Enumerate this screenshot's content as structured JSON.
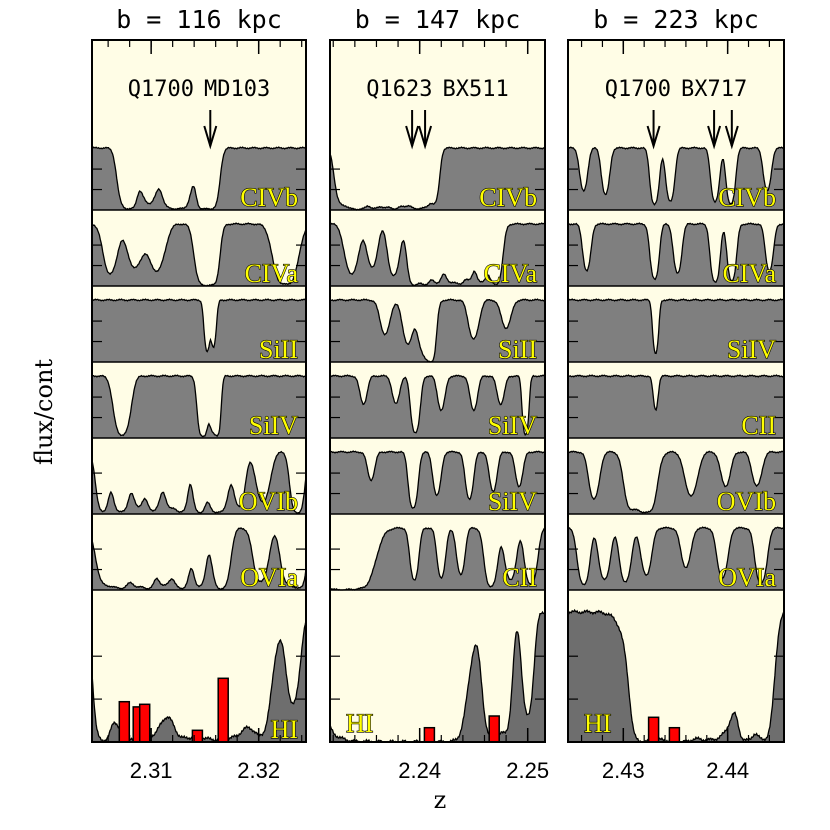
{
  "chart_data": {
    "type": "line",
    "ylabel": "flux/cont",
    "xlabel": "z",
    "colors": {
      "background": "#fffde6",
      "absorption_fill": "#7f7f7f",
      "hi_fill": "#6e6e6e",
      "bar": "#ff0000"
    },
    "panels": [
      {
        "title": "b = 116 kpc",
        "qso": "Q1700",
        "galaxy": "MD103",
        "xlim": [
          2.3045,
          2.3244
        ],
        "xticks": [
          "2.31",
          "2.32"
        ],
        "xtick_values": [
          2.31,
          2.32
        ],
        "galaxy_z": [
          2.3155
        ],
        "bars": [
          {
            "z": 2.3075,
            "h": 0.31
          },
          {
            "z": 2.3088,
            "h": 0.27
          },
          {
            "z": 2.3094,
            "h": 0.29
          },
          {
            "z": 2.3143,
            "h": 0.09
          },
          {
            "z": 2.3167,
            "h": 0.49
          }
        ],
        "rows": [
          {
            "ion": "CIVb",
            "lines": [
              [
                2.3074,
                0.5,
                0.0004
              ],
              [
                2.3081,
                0.9,
                0.0004
              ],
              [
                2.3098,
                0.55,
                0.0006
              ],
              [
                2.3117,
                0.7,
                0.0005
              ],
              [
                2.3128,
                0.9,
                0.0006
              ],
              [
                2.3148,
                0.98,
                0.0004
              ],
              [
                2.3157,
                0.85,
                0.0004
              ]
            ]
          },
          {
            "ion": "CIVa",
            "lines": [
              [
                2.3062,
                0.4,
                0.0005
              ],
              [
                2.3085,
                0.3,
                0.0006
              ],
              [
                2.3105,
                0.35,
                0.0006
              ],
              [
                2.3149,
                0.95,
                0.0005
              ],
              [
                2.3157,
                0.8,
                0.0004
              ],
              [
                2.3225,
                0.9,
                0.0007
              ]
            ]
          },
          {
            "ion": "SiII",
            "lines": [
              [
                2.3152,
                0.45,
                0.0002
              ],
              [
                2.3158,
                0.35,
                0.0002
              ]
            ]
          },
          {
            "ion": "SiIV",
            "lines": [
              [
                2.3073,
                0.75,
                0.0005
              ],
              [
                2.3148,
                0.95,
                0.0003
              ],
              [
                2.3158,
                0.6,
                0.0003
              ],
              [
                2.3162,
                0.5,
                0.0002
              ]
            ]
          },
          {
            "ion": "OVIb",
            "lines": [
              [
                2.3055,
                0.75,
                0.0004
              ],
              [
                2.3072,
                0.85,
                0.0005
              ],
              [
                2.3088,
                0.5,
                0.0004
              ],
              [
                2.3102,
                0.7,
                0.0005
              ],
              [
                2.3118,
                0.55,
                0.0004
              ],
              [
                2.3128,
                0.85,
                0.0004
              ],
              [
                2.3145,
                0.9,
                0.0004
              ],
              [
                2.3162,
                0.95,
                0.0006
              ],
              [
                2.3182,
                0.5,
                0.0004
              ],
              [
                2.3204,
                0.4,
                0.0005
              ],
              [
                2.3236,
                0.95,
                0.0004
              ]
            ]
          },
          {
            "ion": "OVIa",
            "lines": [
              [
                2.3058,
                0.6,
                0.0006
              ],
              [
                2.3072,
                0.85,
                0.0006
              ],
              [
                2.3088,
                0.7,
                0.0005
              ],
              [
                2.3098,
                0.8,
                0.0004
              ],
              [
                2.3112,
                0.65,
                0.0005
              ],
              [
                2.3128,
                0.9,
                0.0005
              ],
              [
                2.3145,
                0.7,
                0.0004
              ],
              [
                2.3165,
                0.95,
                0.0005
              ],
              [
                2.3202,
                0.5,
                0.0005
              ],
              [
                2.3228,
                0.6,
                0.0005
              ],
              [
                2.3238,
                0.8,
                0.0004
              ]
            ]
          },
          {
            "ion": "HI",
            "lines": [
              [
                2.3055,
                0.95,
                0.0005
              ],
              [
                2.3088,
                1.0,
                0.0016
              ],
              [
                2.313,
                0.45,
                0.0007
              ],
              [
                2.3162,
                1.0,
                0.0023
              ],
              [
                2.3202,
                0.5,
                0.0006
              ],
              [
                2.3232,
                0.3,
                0.0005
              ]
            ]
          }
        ]
      },
      {
        "title": "b = 147 kpc",
        "qso": "Q1623",
        "galaxy": "BX511",
        "xlim": [
          2.2317,
          2.2516
        ],
        "xticks": [
          "2.24",
          "2.25"
        ],
        "xtick_values": [
          2.24,
          2.25
        ],
        "galaxy_z": [
          2.2393,
          2.2405
        ],
        "bars": [
          {
            "z": 2.2409,
            "h": 0.11
          },
          {
            "z": 2.2469,
            "h": 0.2
          }
        ],
        "rows": [
          {
            "ion": "CIVb",
            "lines": [
              [
                2.2327,
                0.5,
                0.0004
              ],
              [
                2.2338,
                0.95,
                0.0005
              ],
              [
                2.2347,
                0.8,
                0.0004
              ],
              [
                2.2358,
                0.9,
                0.0004
              ],
              [
                2.2368,
                0.7,
                0.0004
              ],
              [
                2.2377,
                0.85,
                0.0004
              ],
              [
                2.2386,
                0.6,
                0.0004
              ],
              [
                2.2396,
                0.9,
                0.0004
              ],
              [
                2.2405,
                0.75,
                0.0004
              ],
              [
                2.2414,
                0.5,
                0.0003
              ]
            ]
          },
          {
            "ion": "CIVa",
            "lines": [
              [
                2.2337,
                0.4,
                0.0005
              ],
              [
                2.2356,
                0.3,
                0.0004
              ],
              [
                2.2376,
                0.45,
                0.0004
              ],
              [
                2.2395,
                0.95,
                0.0004
              ],
              [
                2.2405,
                0.85,
                0.0004
              ],
              [
                2.2416,
                0.7,
                0.0004
              ],
              [
                2.2428,
                0.6,
                0.0004
              ],
              [
                2.2437,
                0.8,
                0.0004
              ],
              [
                2.2446,
                0.5,
                0.0003
              ],
              [
                2.2457,
                0.7,
                0.0004
              ],
              [
                2.247,
                0.9,
                0.0004
              ]
            ]
          },
          {
            "ion": "SiII",
            "lines": [
              [
                2.2368,
                0.2,
                0.0004
              ],
              [
                2.2389,
                0.3,
                0.0004
              ],
              [
                2.2405,
                0.5,
                0.0005
              ],
              [
                2.241,
                0.9,
                0.0003
              ],
              [
                2.245,
                0.25,
                0.0004
              ],
              [
                2.248,
                0.15,
                0.0004
              ]
            ]
          },
          {
            "ion": "SiIV",
            "lines": [
              [
                2.2348,
                0.15,
                0.0003
              ],
              [
                2.2378,
                0.15,
                0.0003
              ],
              [
                2.2396,
                0.6,
                0.0003
              ],
              [
                2.242,
                0.2,
                0.0003
              ],
              [
                2.245,
                0.2,
                0.0003
              ],
              [
                2.2475,
                0.15,
                0.0003
              ],
              [
                2.2498,
                0.7,
                0.0002
              ]
            ]
          },
          {
            "ion": "SiIV",
            "lines": [
              [
                2.2355,
                0.15,
                0.0003
              ],
              [
                2.2394,
                0.6,
                0.0003
              ],
              [
                2.2416,
                0.3,
                0.0003
              ],
              [
                2.2446,
                0.35,
                0.0003
              ],
              [
                2.2468,
                0.25,
                0.0003
              ],
              [
                2.2492,
                0.2,
                0.0003
              ]
            ]
          },
          {
            "ion": "CII",
            "lines": [
              [
                2.2322,
                0.95,
                0.0008
              ],
              [
                2.2328,
                0.6,
                0.0004
              ],
              [
                2.2341,
                1.0,
                0.001
              ],
              [
                2.2395,
                0.45,
                0.0003
              ],
              [
                2.242,
                0.4,
                0.0003
              ],
              [
                2.2438,
                0.35,
                0.0003
              ],
              [
                2.2466,
                0.7,
                0.0004
              ],
              [
                2.2484,
                0.45,
                0.0004
              ],
              [
                2.2503,
                0.6,
                0.0004
              ]
            ]
          },
          {
            "ion": "HI",
            "lines": [
              [
                2.2328,
                0.8,
                0.0012
              ],
              [
                2.2345,
                0.7,
                0.0008
              ],
              [
                2.236,
                0.85,
                0.0012
              ],
              [
                2.2375,
                0.9,
                0.001
              ],
              [
                2.2388,
                1.0,
                0.0016
              ],
              [
                2.2408,
                1.0,
                0.0016
              ],
              [
                2.2425,
                1.0,
                0.001
              ],
              [
                2.2468,
                0.9,
                0.0006
              ],
              [
                2.248,
                0.5,
                0.0004
              ],
              [
                2.25,
                0.4,
                0.0004
              ]
            ]
          }
        ]
      },
      {
        "title": "b = 223 kpc",
        "qso": "Q1700",
        "galaxy": "BX717",
        "xlim": [
          2.4247,
          2.4454
        ],
        "xticks": [
          "2.43",
          "2.44"
        ],
        "xtick_values": [
          2.43,
          2.44
        ],
        "galaxy_z": [
          2.4329,
          2.4387,
          2.4404
        ],
        "bars": [
          {
            "z": 2.4329,
            "h": 0.19
          },
          {
            "z": 2.4349,
            "h": 0.11
          }
        ],
        "rows": [
          {
            "ion": "CIVb",
            "lines": [
              [
                2.4262,
                0.3,
                0.0003
              ],
              [
                2.4283,
                0.35,
                0.0003
              ],
              [
                2.433,
                0.6,
                0.0003
              ],
              [
                2.4345,
                0.5,
                0.0003
              ],
              [
                2.4388,
                0.5,
                0.0003
              ],
              [
                2.4403,
                0.6,
                0.0003
              ],
              [
                2.4438,
                0.3,
                0.0003
              ]
            ]
          },
          {
            "ion": "CIVa",
            "lines": [
              [
                2.4265,
                0.35,
                0.0003
              ],
              [
                2.433,
                0.55,
                0.0003
              ],
              [
                2.4352,
                0.4,
                0.0003
              ],
              [
                2.4388,
                0.7,
                0.0003
              ],
              [
                2.4404,
                0.6,
                0.0003
              ],
              [
                2.444,
                0.35,
                0.0003
              ]
            ]
          },
          {
            "ion": "SiIV",
            "lines": [
              [
                2.4331,
                0.5,
                0.0002
              ]
            ]
          },
          {
            "ion": "CII",
            "lines": [
              [
                2.4331,
                0.2,
                0.0002
              ]
            ]
          },
          {
            "ion": "OVIb",
            "lines": [
              [
                2.4272,
                0.35,
                0.0004
              ],
              [
                2.4308,
                0.6,
                0.0005
              ],
              [
                2.4322,
                0.95,
                0.0006
              ],
              [
                2.4365,
                0.3,
                0.0005
              ],
              [
                2.4398,
                0.2,
                0.0004
              ],
              [
                2.4428,
                0.2,
                0.0004
              ]
            ]
          },
          {
            "ion": "OVIa",
            "lines": [
              [
                2.4262,
                0.6,
                0.0004
              ],
              [
                2.4282,
                0.45,
                0.0004
              ],
              [
                2.4302,
                0.5,
                0.0004
              ],
              [
                2.4322,
                0.35,
                0.0004
              ],
              [
                2.436,
                0.25,
                0.0004
              ],
              [
                2.4395,
                0.4,
                0.0004
              ],
              [
                2.4432,
                0.55,
                0.0004
              ]
            ]
          },
          {
            "ion": "HI",
            "lines": [
              [
                2.4318,
                0.95,
                0.0006
              ],
              [
                2.4338,
                1.0,
                0.0016
              ],
              [
                2.4355,
                0.95,
                0.0006
              ],
              [
                2.4382,
                1.0,
                0.0016
              ],
              [
                2.4418,
                1.0,
                0.0005
              ],
              [
                2.4434,
                0.95,
                0.0006
              ]
            ]
          }
        ]
      }
    ]
  }
}
